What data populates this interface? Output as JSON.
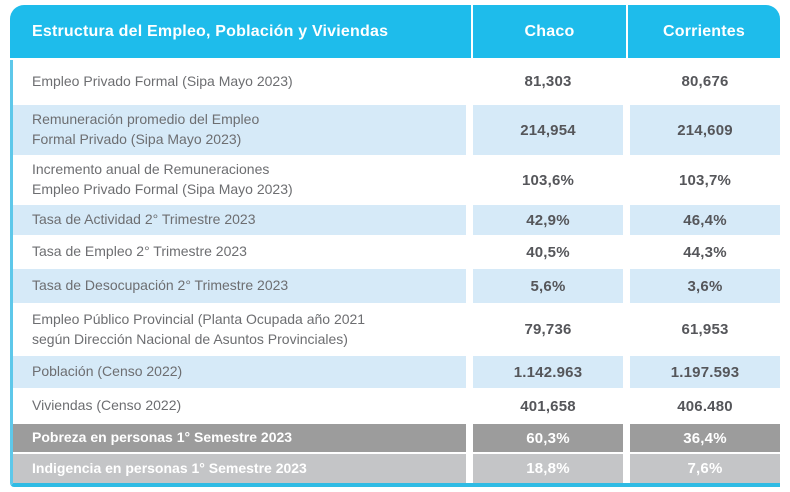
{
  "colors": {
    "header_cyan": "#1EBCEB",
    "row_light_blue": "#D6EAF8",
    "row_white": "#FFFFFF",
    "row_gray_dark": "#9C9C9C",
    "row_gray_light": "#C4C5C7",
    "border_left_cyan": "#5EC8EA",
    "border_bottom_cyan": "#2FBBE4",
    "label_text": "#6D6E71",
    "value_text": "#55565A",
    "header_text": "#FFFFFF"
  },
  "table": {
    "header": {
      "title": "Estructura del Empleo, Población y Viviendas",
      "col1": "Chaco",
      "col2": "Corrientes"
    },
    "rows": [
      {
        "label": "Empleo Privado Formal (Sipa Mayo 2023)",
        "chaco": "81,303",
        "corrientes": "80,676"
      },
      {
        "label": "Remuneración promedio del Empleo\nFormal Privado (Sipa Mayo 2023)",
        "chaco": "214,954",
        "corrientes": "214,609"
      },
      {
        "label": "Incremento anual de Remuneraciones\nEmpleo Privado Formal (Sipa Mayo 2023)",
        "chaco": "103,6%",
        "corrientes": "103,7%"
      },
      {
        "label": "Tasa de Actividad 2° Trimestre 2023",
        "chaco": "42,9%",
        "corrientes": "46,4%"
      },
      {
        "label": "Tasa de Empleo 2° Trimestre 2023",
        "chaco": "40,5%",
        "corrientes": "44,3%"
      },
      {
        "label": "Tasa de Desocupación 2° Trimestre 2023",
        "chaco": "5,6%",
        "corrientes": "3,6%"
      },
      {
        "label": "Empleo Público Provincial (Planta Ocupada año 2021\nsegún Dirección Nacional de Asuntos Provinciales)",
        "chaco": "79,736",
        "corrientes": "61,953"
      },
      {
        "label": "Población (Censo 2022)",
        "chaco": "1.142.963",
        "corrientes": "1.197.593"
      },
      {
        "label": "Viviendas (Censo 2022)",
        "chaco": "401,658",
        "corrientes": "406.480"
      },
      {
        "label": "Pobreza en personas 1° Semestre 2023",
        "chaco": "60,3%",
        "corrientes": "36,4%"
      },
      {
        "label": "Indigencia en personas 1° Semestre 2023",
        "chaco": "18,8%",
        "corrientes": "7,6%"
      }
    ]
  },
  "chart_data": {
    "type": "table",
    "title": "Estructura del Empleo, Población y Viviendas",
    "columns": [
      "Estructura del Empleo, Población y Viviendas",
      "Chaco",
      "Corrientes"
    ],
    "rows": [
      [
        "Empleo Privado Formal (Sipa Mayo 2023)",
        "81,303",
        "80,676"
      ],
      [
        "Remuneración promedio del Empleo Formal Privado (Sipa Mayo 2023)",
        "214,954",
        "214,609"
      ],
      [
        "Incremento anual de Remuneraciones Empleo Privado Formal (Sipa Mayo 2023)",
        "103,6%",
        "103,7%"
      ],
      [
        "Tasa de Actividad 2° Trimestre 2023",
        "42,9%",
        "46,4%"
      ],
      [
        "Tasa de Empleo 2° Trimestre 2023",
        "40,5%",
        "44,3%"
      ],
      [
        "Tasa de Desocupación 2° Trimestre 2023",
        "5,6%",
        "3,6%"
      ],
      [
        "Empleo Público Provincial (Planta Ocupada año 2021 según Dirección Nacional de Asuntos Provinciales)",
        "79,736",
        "61,953"
      ],
      [
        "Población (Censo 2022)",
        "1.142.963",
        "1.197.593"
      ],
      [
        "Viviendas (Censo 2022)",
        "401,658",
        "406.480"
      ],
      [
        "Pobreza en personas 1° Semestre 2023",
        "60,3%",
        "36,4%"
      ],
      [
        "Indigencia en personas 1° Semestre 2023",
        "18,8%",
        "7,6%"
      ]
    ]
  }
}
